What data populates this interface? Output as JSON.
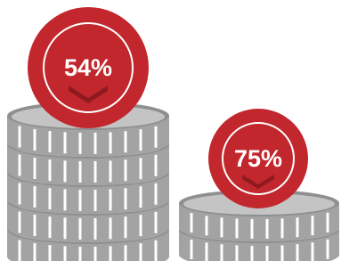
{
  "badges": [
    {
      "label": "54%"
    },
    {
      "label": "75%"
    }
  ]
}
